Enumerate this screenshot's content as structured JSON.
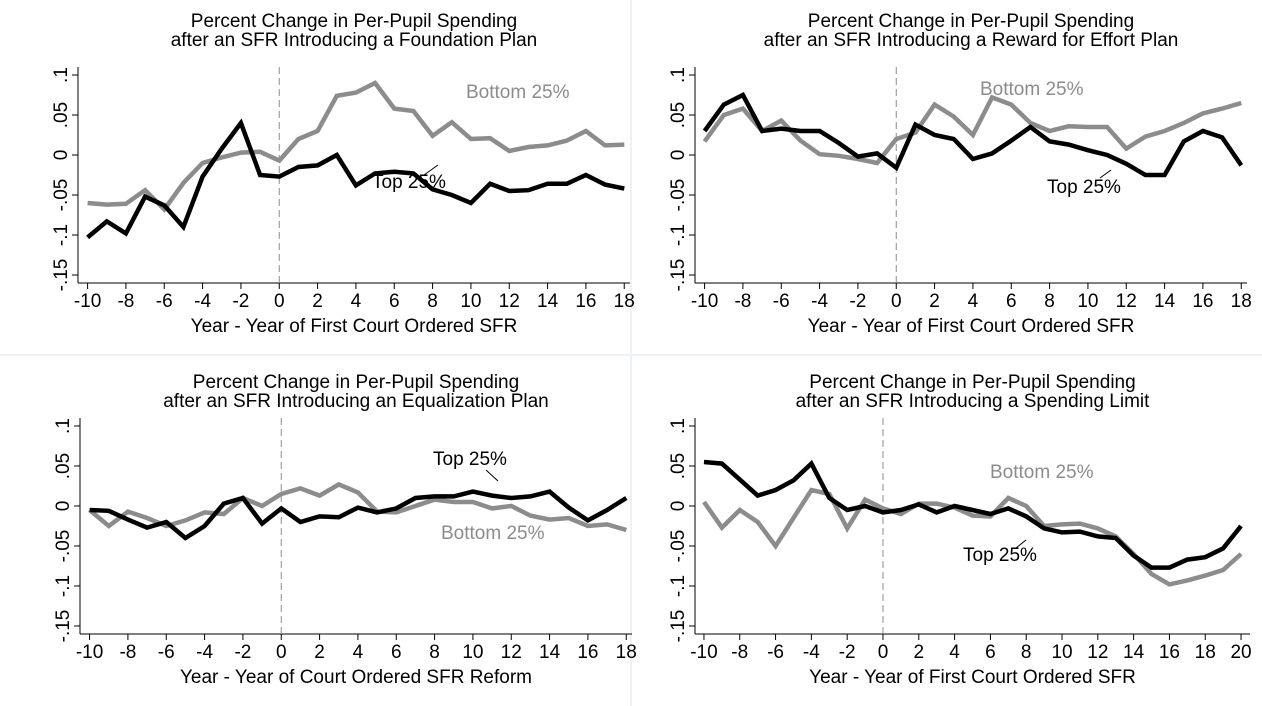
{
  "chart_data": [
    {
      "type": "line",
      "title": [
        "Percent Change in Per-Pupil Spending",
        "after an SFR Introducing a Foundation Plan"
      ],
      "xlabel": "Year - Year of First Court Ordered SFR",
      "x": [
        -10,
        -9,
        -8,
        -7,
        -6,
        -5,
        -4,
        -3,
        -2,
        -1,
        0,
        1,
        2,
        3,
        4,
        5,
        6,
        7,
        8,
        9,
        10,
        11,
        12,
        13,
        14,
        15,
        16,
        17,
        18
      ],
      "series": [
        {
          "name": "Bottom 25%",
          "color": "#8c8c8c",
          "values": [
            -0.06,
            -0.062,
            -0.061,
            -0.044,
            -0.068,
            -0.035,
            -0.01,
            -0.003,
            0.003,
            0.004,
            -0.007,
            0.02,
            0.03,
            0.074,
            0.078,
            0.09,
            0.058,
            0.055,
            0.024,
            0.041,
            0.02,
            0.021,
            0.005,
            0.01,
            0.012,
            0.018,
            0.03,
            0.012,
            0.013
          ]
        },
        {
          "name": "Top 25%",
          "color": "#000000",
          "values": [
            -0.103,
            -0.083,
            -0.098,
            -0.052,
            -0.063,
            -0.09,
            -0.027,
            0.008,
            0.04,
            -0.025,
            -0.027,
            -0.015,
            -0.013,
            0,
            -0.038,
            -0.023,
            -0.021,
            -0.023,
            -0.043,
            -0.05,
            -0.06,
            -0.036,
            -0.045,
            -0.044,
            -0.036,
            -0.036,
            -0.025,
            -0.037,
            -0.042
          ]
        }
      ],
      "xlim": [
        -10.5,
        18.3
      ],
      "xticks": [
        -10,
        -8,
        -6,
        -4,
        -2,
        0,
        2,
        4,
        6,
        8,
        10,
        12,
        14,
        16,
        18
      ],
      "ylim": [
        -0.16,
        0.11
      ],
      "yticks": [
        {
          "value": -0.15,
          "label": "-.15"
        },
        {
          "value": -0.1,
          "label": "-.1"
        },
        {
          "value": -0.05,
          "label": "-.05"
        },
        {
          "value": 0,
          "label": "0"
        },
        {
          "value": 0.05,
          "label": ".05"
        },
        {
          "value": 0.1,
          "label": ".1"
        }
      ],
      "vline": 0
    },
    {
      "type": "line",
      "title": [
        "Percent Change in Per-Pupil Spending",
        "after an SFR Introducing a Reward for Effort Plan"
      ],
      "xlabel": "Year - Year of First Court Ordered SFR",
      "x": [
        -10,
        -9,
        -8,
        -7,
        -6,
        -5,
        -4,
        -3,
        -2,
        -1,
        0,
        1,
        2,
        3,
        4,
        5,
        6,
        7,
        8,
        9,
        10,
        11,
        12,
        13,
        14,
        15,
        16,
        17,
        18
      ],
      "series": [
        {
          "name": "Bottom 25%",
          "color": "#8c8c8c",
          "values": [
            0.017,
            0.05,
            0.058,
            0.03,
            0.043,
            0.018,
            0.001,
            -0.001,
            -0.005,
            -0.01,
            0.02,
            0.028,
            0.063,
            0.048,
            0.025,
            0.072,
            0.063,
            0.04,
            0.03,
            0.036,
            0.035,
            0.035,
            0.008,
            0.023,
            0.03,
            0.04,
            0.052,
            0.058,
            0.065
          ]
        },
        {
          "name": "Top 25%",
          "color": "#000000",
          "values": [
            0.03,
            0.063,
            0.075,
            0.03,
            0.033,
            0.03,
            0.03,
            0.015,
            -0.002,
            0.002,
            -0.016,
            0.038,
            0.025,
            0.02,
            -0.005,
            0.002,
            0.018,
            0.035,
            0.017,
            0.013,
            0.006,
            0,
            -0.011,
            -0.025,
            -0.025,
            0.017,
            0.03,
            0.022,
            -0.013
          ]
        }
      ],
      "xlim": [
        -10.5,
        18.3
      ],
      "xticks": [
        -10,
        -8,
        -6,
        -4,
        -2,
        0,
        2,
        4,
        6,
        8,
        10,
        12,
        14,
        16,
        18
      ],
      "ylim": [
        -0.16,
        0.11
      ],
      "yticks": [
        {
          "value": -0.15,
          "label": "-.15"
        },
        {
          "value": -0.1,
          "label": "-.1"
        },
        {
          "value": -0.05,
          "label": "-.05"
        },
        {
          "value": 0,
          "label": "0"
        },
        {
          "value": 0.05,
          "label": ".05"
        },
        {
          "value": 0.1,
          "label": ".1"
        }
      ],
      "vline": 0
    },
    {
      "type": "line",
      "title": [
        "Percent Change in Per-Pupil Spending",
        "after an SFR Introducing an Equalization Plan"
      ],
      "xlabel": "Year - Year of Court Ordered SFR Reform",
      "x": [
        -10,
        -9,
        -8,
        -7,
        -6,
        -5,
        -4,
        -3,
        -2,
        -1,
        0,
        1,
        2,
        3,
        4,
        5,
        6,
        7,
        8,
        9,
        10,
        11,
        12,
        13,
        14,
        15,
        16,
        17,
        18
      ],
      "series": [
        {
          "name": "Bottom 25%",
          "color": "#8c8c8c",
          "values": [
            -0.005,
            -0.025,
            -0.007,
            -0.015,
            -0.025,
            -0.018,
            -0.008,
            -0.01,
            0.01,
            0,
            0.015,
            0.022,
            0.013,
            0.027,
            0.017,
            -0.007,
            -0.008,
            0,
            0.008,
            0.005,
            0.005,
            -0.003,
            0,
            -0.012,
            -0.017,
            -0.015,
            -0.025,
            -0.023,
            -0.03
          ]
        },
        {
          "name": "Top 25%",
          "color": "#000000",
          "values": [
            -0.005,
            -0.006,
            -0.017,
            -0.027,
            -0.02,
            -0.04,
            -0.025,
            0.003,
            0.01,
            -0.022,
            -0.003,
            -0.02,
            -0.013,
            -0.014,
            -0.002,
            -0.008,
            -0.003,
            0.01,
            0.012,
            0.012,
            0.018,
            0.013,
            0.01,
            0.012,
            0.018,
            -0.002,
            -0.018,
            -0.005,
            0.01
          ]
        }
      ],
      "xlim": [
        -10.5,
        18.3
      ],
      "xticks": [
        -10,
        -8,
        -6,
        -4,
        -2,
        0,
        2,
        4,
        6,
        8,
        10,
        12,
        14,
        16,
        18
      ],
      "ylim": [
        -0.16,
        0.11
      ],
      "yticks": [
        {
          "value": -0.15,
          "label": "-.15"
        },
        {
          "value": -0.1,
          "label": "-.1"
        },
        {
          "value": -0.05,
          "label": "-.05"
        },
        {
          "value": 0,
          "label": "0"
        },
        {
          "value": 0.05,
          "label": ".05"
        },
        {
          "value": 0.1,
          "label": ".1"
        }
      ],
      "vline": 0
    },
    {
      "type": "line",
      "title": [
        "Percent Change in Per-Pupil Spending",
        "after an SFR Introducing a Spending Limit"
      ],
      "xlabel": "Year - Year of First Court Ordered SFR",
      "x": [
        -10,
        -9,
        -8,
        -7,
        -6,
        -5,
        -4,
        -3,
        -2,
        -1,
        0,
        1,
        2,
        3,
        4,
        5,
        6,
        7,
        8,
        9,
        10,
        11,
        12,
        13,
        14,
        15,
        16,
        17,
        18,
        19,
        20
      ],
      "series": [
        {
          "name": "Bottom 25%",
          "color": "#8c8c8c",
          "values": [
            0.005,
            -0.027,
            -0.005,
            -0.02,
            -0.05,
            -0.015,
            0.02,
            0.015,
            -0.028,
            0.008,
            -0.003,
            -0.01,
            0.003,
            0.003,
            -0.002,
            -0.012,
            -0.013,
            0.01,
            0,
            -0.025,
            -0.023,
            -0.022,
            -0.028,
            -0.038,
            -0.06,
            -0.085,
            -0.098,
            -0.093,
            -0.087,
            -0.08,
            -0.06
          ]
        },
        {
          "name": "Top 25%",
          "color": "#000000",
          "values": [
            0.055,
            0.053,
            0.033,
            0.013,
            0.02,
            0.032,
            0.053,
            0.01,
            -0.005,
            0,
            -0.008,
            -0.005,
            0.002,
            -0.008,
            0,
            -0.005,
            -0.01,
            -0.003,
            -0.013,
            -0.028,
            -0.033,
            -0.032,
            -0.038,
            -0.04,
            -0.062,
            -0.077,
            -0.077,
            -0.067,
            -0.064,
            -0.053,
            -0.025
          ]
        }
      ],
      "xlim": [
        -10.5,
        20.5
      ],
      "xticks": [
        -10,
        -8,
        -6,
        -4,
        -2,
        0,
        2,
        4,
        6,
        8,
        10,
        12,
        14,
        16,
        18,
        20
      ],
      "ylim": [
        -0.16,
        0.11
      ],
      "yticks": [
        {
          "value": -0.15,
          "label": "-.15"
        },
        {
          "value": -0.1,
          "label": "-.1"
        },
        {
          "value": -0.05,
          "label": "-.05"
        },
        {
          "value": 0,
          "label": "0"
        },
        {
          "value": 0.05,
          "label": ".05"
        },
        {
          "value": 0.1,
          "label": ".1"
        }
      ],
      "vline": 0
    }
  ]
}
